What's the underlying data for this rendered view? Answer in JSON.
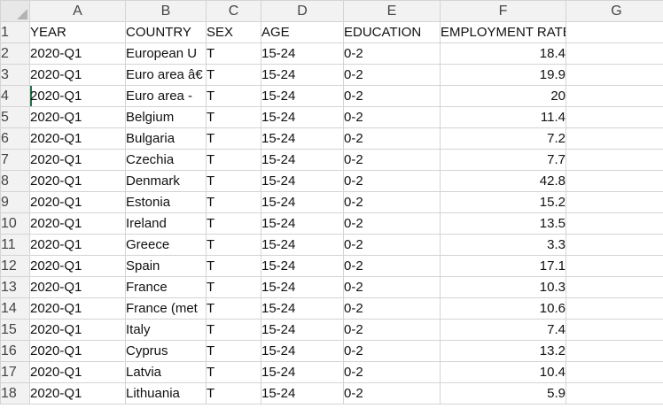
{
  "sheet": {
    "columns": [
      "A",
      "B",
      "C",
      "D",
      "E",
      "F",
      "G"
    ],
    "rows": [
      [
        "1",
        "YEAR",
        "COUNTRY",
        "SEX",
        "AGE",
        "EDUCATION",
        "EMPLOYMENT RATE",
        ""
      ],
      [
        "2",
        "2020-Q1",
        "European U",
        "T",
        "15-24",
        "0-2",
        "18.4",
        ""
      ],
      [
        "3",
        "2020-Q1",
        "Euro area â€",
        "T",
        "15-24",
        "0-2",
        "19.9",
        ""
      ],
      [
        "4",
        "2020-Q1",
        "Euro area -",
        "T",
        "15-24",
        "0-2",
        "20",
        ""
      ],
      [
        "5",
        "2020-Q1",
        "Belgium",
        "T",
        "15-24",
        "0-2",
        "11.4",
        ""
      ],
      [
        "6",
        "2020-Q1",
        "Bulgaria",
        "T",
        "15-24",
        "0-2",
        "7.2",
        ""
      ],
      [
        "7",
        "2020-Q1",
        "Czechia",
        "T",
        "15-24",
        "0-2",
        "7.7",
        ""
      ],
      [
        "8",
        "2020-Q1",
        "Denmark",
        "T",
        "15-24",
        "0-2",
        "42.8",
        ""
      ],
      [
        "9",
        "2020-Q1",
        "Estonia",
        "T",
        "15-24",
        "0-2",
        "15.2",
        ""
      ],
      [
        "10",
        "2020-Q1",
        "Ireland",
        "T",
        "15-24",
        "0-2",
        "13.5",
        ""
      ],
      [
        "11",
        "2020-Q1",
        "Greece",
        "T",
        "15-24",
        "0-2",
        "3.3",
        ""
      ],
      [
        "12",
        "2020-Q1",
        "Spain",
        "T",
        "15-24",
        "0-2",
        "17.1",
        ""
      ],
      [
        "13",
        "2020-Q1",
        "France",
        "T",
        "15-24",
        "0-2",
        "10.3",
        ""
      ],
      [
        "14",
        "2020-Q1",
        "France (met",
        "T",
        "15-24",
        "0-2",
        "10.6",
        ""
      ],
      [
        "15",
        "2020-Q1",
        "Italy",
        "T",
        "15-24",
        "0-2",
        "7.4",
        ""
      ],
      [
        "16",
        "2020-Q1",
        "Cyprus",
        "T",
        "15-24",
        "0-2",
        "13.2",
        ""
      ],
      [
        "17",
        "2020-Q1",
        "Latvia",
        "T",
        "15-24",
        "0-2",
        "10.4",
        ""
      ],
      [
        "18",
        "2020-Q1",
        "Lithuania",
        "T",
        "15-24",
        "0-2",
        "5.9",
        ""
      ]
    ]
  },
  "colors": {
    "header_bg": "#f2f2f2",
    "gridline": "#d4d4d4",
    "active_cell_accent": "#217346"
  }
}
